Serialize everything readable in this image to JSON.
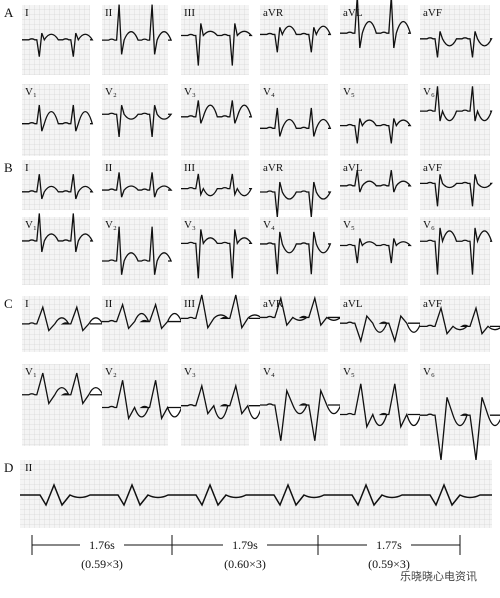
{
  "panels": [
    {
      "label": "A",
      "rows": [
        [
          "I",
          "II",
          "III",
          "aVR",
          "aVL",
          "aVF"
        ],
        [
          "V₁",
          "V₂",
          "V₃",
          "V₄",
          "V₅",
          "V₆"
        ]
      ]
    },
    {
      "label": "B",
      "rows": [
        [
          "I",
          "II",
          "III",
          "aVR",
          "aVL",
          "aVF"
        ],
        [
          "V₁",
          "V₂",
          "V₃",
          "V₄",
          "V₅",
          "V₆"
        ]
      ]
    },
    {
      "label": "C",
      "rows": [
        [
          "I",
          "II",
          "III",
          "aVR",
          "aVL",
          "aVF"
        ],
        [
          "V₁",
          "V₂",
          "V₃",
          "V₄",
          "V₅",
          "V₆"
        ]
      ]
    }
  ],
  "rhythm_strip": {
    "label": "D",
    "lead": "II",
    "intervals": [
      {
        "duration": "1.76s",
        "calculation": "(0.59×3)"
      },
      {
        "duration": "1.79s",
        "calculation": "(0.60×3)"
      },
      {
        "duration": "1.77s",
        "calculation": "(0.59×3)"
      }
    ]
  },
  "watermark": "乐晓晓心电资讯"
}
